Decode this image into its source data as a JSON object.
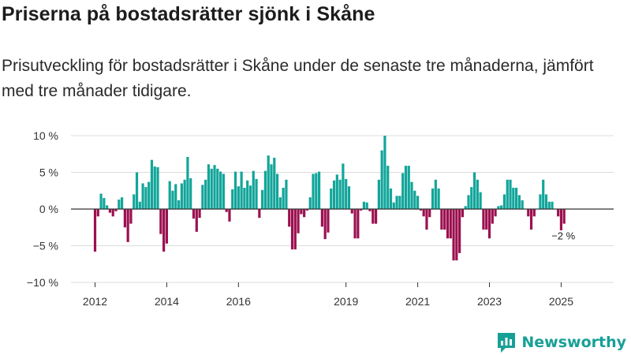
{
  "title": "Priserna på bostadsrätter sjönk i Skåne",
  "subtitle": "Prisutveckling för bostadsrätter i Skåne under de senaste tre månaderna, jämfört med tre månader tidigare.",
  "brand": {
    "name": "Newsworthy",
    "icon": "newsworthy-logo-icon"
  },
  "colors": {
    "positive": "#12a59a",
    "negative": "#9c1050",
    "grid": "#dddddd",
    "zero_line": "#333333"
  },
  "chart_data": {
    "type": "bar",
    "title": "Priserna på bostadsrätter sjönk i Skåne",
    "xlabel": "",
    "ylabel": "",
    "ylim": [
      -10,
      10
    ],
    "yticks": [
      10,
      5,
      0,
      -5,
      -10
    ],
    "ytick_labels": [
      "10 %",
      "5 %",
      "0 %",
      "−5 %",
      "−10 %"
    ],
    "xticks": [
      {
        "year": 2012,
        "label": "2012"
      },
      {
        "year": 2014,
        "label": "2014"
      },
      {
        "year": 2016,
        "label": "2016"
      },
      {
        "year": 2019,
        "label": "2019"
      },
      {
        "year": 2021,
        "label": "2021"
      },
      {
        "year": 2023,
        "label": "2023"
      },
      {
        "year": 2025,
        "label": "2025"
      }
    ],
    "start": {
      "year": 2012,
      "month": 1
    },
    "last_label": "−2 %",
    "unit": "%",
    "values": [
      -5.8,
      -1,
      2.1,
      1.5,
      0.5,
      -0.5,
      -1,
      -0.3,
      1.3,
      1.6,
      -2.5,
      -4.5,
      -2,
      2,
      5,
      1,
      3.5,
      3,
      3.7,
      6.7,
      5.8,
      5.7,
      -3.4,
      -5.8,
      -4.7,
      3.8,
      2.5,
      3.4,
      1.2,
      3.5,
      4,
      7.1,
      4.2,
      -1.3,
      -3.1,
      -1.2,
      3.3,
      4,
      6.1,
      5.5,
      6,
      5.5,
      5.1,
      4.8,
      -0.4,
      -1.7,
      2.7,
      5.1,
      3.1,
      5.1,
      2.9,
      3.9,
      3.2,
      5.2,
      4.1,
      -1.2,
      2.6,
      5.2,
      7.3,
      6.1,
      7,
      4.8,
      1.6,
      2.9,
      4,
      -2.4,
      -5.5,
      -5.5,
      -3.3,
      -0.7,
      -1.1,
      -0.2,
      1.6,
      4.8,
      4.9,
      5.1,
      -2.4,
      -4.1,
      -3.2,
      2.8,
      3.9,
      4.7,
      4,
      6.2,
      4.1,
      3.1,
      -0.6,
      -4,
      -4,
      -0.2,
      1,
      0.9,
      -0.3,
      -2,
      -2,
      4,
      8,
      10,
      5.9,
      2.8,
      0.9,
      1.8,
      1.8,
      4.9,
      5.9,
      5.9,
      3.7,
      2.5,
      1.8,
      -0.2,
      -1,
      -2.8,
      -1.1,
      2.8,
      4,
      2.8,
      -2.8,
      -2.8,
      -4,
      -4,
      -7,
      -7,
      -6,
      -1.1,
      0.4,
      1.9,
      3,
      5,
      4,
      2.3,
      -2.8,
      -2.8,
      -4,
      -2,
      -1,
      0.4,
      0.5,
      2,
      4,
      4,
      2.9,
      2.9,
      1.9,
      1.2,
      0,
      -1,
      -2.8,
      -1,
      0,
      2,
      4,
      2,
      1,
      1,
      0,
      -1,
      -2.9,
      -2
    ]
  }
}
